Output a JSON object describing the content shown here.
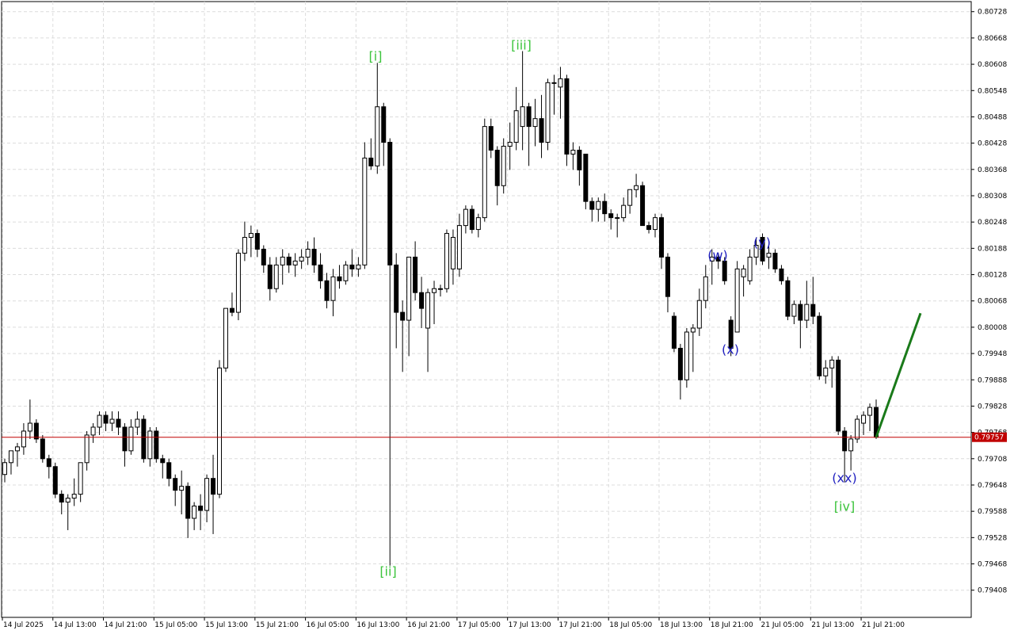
{
  "chart_data": {
    "type": "candlestick",
    "grid": true,
    "ylim": [
      0.79346,
      0.80751
    ],
    "yticks": [
      0.79408,
      0.79468,
      0.79528,
      0.79588,
      0.79648,
      0.79708,
      0.79768,
      0.79828,
      0.79888,
      0.79948,
      0.80008,
      0.80068,
      0.80128,
      0.80188,
      0.80248,
      0.80308,
      0.80368,
      0.80428,
      0.80488,
      0.80548,
      0.80608,
      0.80668,
      0.80728
    ],
    "categories": [
      "14 Jul 2025",
      null,
      null,
      null,
      null,
      null,
      null,
      null,
      "14 Jul 13:00",
      null,
      null,
      null,
      null,
      null,
      null,
      null,
      "14 Jul 21:00",
      null,
      null,
      null,
      null,
      null,
      null,
      null,
      "15 Jul 05:00",
      null,
      null,
      null,
      null,
      null,
      null,
      null,
      "15 Jul 13:00",
      null,
      null,
      null,
      null,
      null,
      null,
      null,
      "15 Jul 21:00",
      null,
      null,
      null,
      null,
      null,
      null,
      null,
      "16 Jul 05:00",
      null,
      null,
      null,
      null,
      null,
      null,
      null,
      "16 Jul 13:00",
      null,
      null,
      null,
      null,
      null,
      null,
      null,
      "16 Jul 21:00",
      null,
      null,
      null,
      null,
      null,
      null,
      null,
      "17 Jul 05:00",
      null,
      null,
      null,
      null,
      null,
      null,
      null,
      "17 Jul 13:00",
      null,
      null,
      null,
      null,
      null,
      null,
      null,
      "17 Jul 21:00",
      null,
      null,
      null,
      null,
      null,
      null,
      null,
      "18 Jul 05:00",
      null,
      null,
      null,
      null,
      null,
      null,
      null,
      "18 Jul 13:00",
      null,
      null,
      null,
      null,
      null,
      null,
      null,
      "18 Jul 21:00",
      null,
      null,
      null,
      null,
      null,
      null,
      null,
      "21 Jul 05:00",
      null,
      null,
      null,
      null,
      null,
      null,
      null,
      "21 Jul 13:00",
      null,
      null,
      null,
      null,
      null,
      null,
      null,
      "21 Jul 21:00",
      null,
      null
    ],
    "up_color": "#ffffff",
    "down_color": "#000000",
    "candles": [
      [
        0.79672,
        0.79708,
        0.79654,
        0.79699
      ],
      [
        0.79699,
        0.79726,
        0.79672,
        0.79726
      ],
      [
        0.79726,
        0.79744,
        0.7969,
        0.79735
      ],
      [
        0.79735,
        0.79789,
        0.79717,
        0.79771
      ],
      [
        0.79771,
        0.79843,
        0.79753,
        0.79789
      ],
      [
        0.79789,
        0.79798,
        0.79744,
        0.79753
      ],
      [
        0.79753,
        0.79762,
        0.79699,
        0.79708
      ],
      [
        0.79708,
        0.79717,
        0.79663,
        0.7969
      ],
      [
        0.7969,
        0.79699,
        0.79618,
        0.79627
      ],
      [
        0.79627,
        0.79636,
        0.79581,
        0.79609
      ],
      [
        0.79609,
        0.79627,
        0.79545,
        0.79618
      ],
      [
        0.79618,
        0.79663,
        0.796,
        0.79627
      ],
      [
        0.79627,
        0.79699,
        0.79609,
        0.79699
      ],
      [
        0.79699,
        0.79771,
        0.79681,
        0.79762
      ],
      [
        0.79762,
        0.79789,
        0.79744,
        0.7978
      ],
      [
        0.7978,
        0.79816,
        0.79762,
        0.79807
      ],
      [
        0.79807,
        0.79816,
        0.79771,
        0.79789
      ],
      [
        0.79789,
        0.79816,
        0.79771,
        0.79798
      ],
      [
        0.79798,
        0.79816,
        0.79762,
        0.7978
      ],
      [
        0.7978,
        0.79789,
        0.7969,
        0.79726
      ],
      [
        0.79726,
        0.79798,
        0.79717,
        0.7978
      ],
      [
        0.7978,
        0.79816,
        0.79762,
        0.79798
      ],
      [
        0.79798,
        0.79807,
        0.79699,
        0.79708
      ],
      [
        0.79708,
        0.7978,
        0.7969,
        0.79771
      ],
      [
        0.79771,
        0.7978,
        0.79699,
        0.79708
      ],
      [
        0.79708,
        0.79717,
        0.79663,
        0.79699
      ],
      [
        0.79699,
        0.79708,
        0.79645,
        0.79663
      ],
      [
        0.79663,
        0.79672,
        0.796,
        0.79636
      ],
      [
        0.79636,
        0.79681,
        0.79581,
        0.79645
      ],
      [
        0.79645,
        0.79654,
        0.79527,
        0.79572
      ],
      [
        0.79572,
        0.79609,
        0.79545,
        0.796
      ],
      [
        0.796,
        0.79627,
        0.79545,
        0.7959
      ],
      [
        0.7959,
        0.79672,
        0.79563,
        0.79663
      ],
      [
        0.79663,
        0.79717,
        0.79536,
        0.79627
      ],
      [
        0.79627,
        0.79933,
        0.79618,
        0.79915
      ],
      [
        0.79915,
        0.80051,
        0.79906,
        0.80051
      ],
      [
        0.80051,
        0.80087,
        0.80033,
        0.80042
      ],
      [
        0.80042,
        0.80186,
        0.80024,
        0.80177
      ],
      [
        0.80177,
        0.80249,
        0.80159,
        0.80213
      ],
      [
        0.80213,
        0.8024,
        0.80168,
        0.80222
      ],
      [
        0.80222,
        0.80231,
        0.80168,
        0.80186
      ],
      [
        0.80186,
        0.80195,
        0.80132,
        0.8015
      ],
      [
        0.8015,
        0.80168,
        0.80069,
        0.80096
      ],
      [
        0.80096,
        0.80168,
        0.80087,
        0.8015
      ],
      [
        0.8015,
        0.80186,
        0.80105,
        0.80168
      ],
      [
        0.80168,
        0.80177,
        0.80132,
        0.8015
      ],
      [
        0.8015,
        0.80177,
        0.80123,
        0.80159
      ],
      [
        0.80159,
        0.80186,
        0.80141,
        0.80168
      ],
      [
        0.80168,
        0.80204,
        0.8015,
        0.80186
      ],
      [
        0.80186,
        0.80213,
        0.80132,
        0.8015
      ],
      [
        0.8015,
        0.80177,
        0.80096,
        0.80114
      ],
      [
        0.80114,
        0.80132,
        0.80051,
        0.80069
      ],
      [
        0.80069,
        0.80141,
        0.80033,
        0.80123
      ],
      [
        0.80123,
        0.8015,
        0.80096,
        0.80114
      ],
      [
        0.80114,
        0.80159,
        0.80105,
        0.8015
      ],
      [
        0.8015,
        0.80186,
        0.80123,
        0.80141
      ],
      [
        0.80141,
        0.80168,
        0.80123,
        0.8015
      ],
      [
        0.8015,
        0.8043,
        0.80141,
        0.80394
      ],
      [
        0.80394,
        0.80439,
        0.80367,
        0.80376
      ],
      [
        0.80376,
        0.80611,
        0.80358,
        0.80511
      ],
      [
        0.80511,
        0.8052,
        0.80376,
        0.8043
      ],
      [
        0.8043,
        0.80439,
        0.79464,
        0.8015
      ],
      [
        0.8015,
        0.80177,
        0.7996,
        0.80042
      ],
      [
        0.80042,
        0.80069,
        0.79906,
        0.80024
      ],
      [
        0.80024,
        0.80168,
        0.79942,
        0.80168
      ],
      [
        0.80168,
        0.80204,
        0.80069,
        0.80087
      ],
      [
        0.80087,
        0.80123,
        0.80006,
        0.80051
      ],
      [
        0.80006,
        0.80096,
        0.79906,
        0.80087
      ],
      [
        0.80087,
        0.80114,
        0.80015,
        0.80096
      ],
      [
        0.80096,
        0.80105,
        0.80078,
        0.80096
      ],
      [
        0.80096,
        0.80231,
        0.80087,
        0.80222
      ],
      [
        0.80141,
        0.80231,
        0.80105,
        0.80213
      ],
      [
        0.80141,
        0.80267,
        0.80123,
        0.8024
      ],
      [
        0.8024,
        0.80286,
        0.80222,
        0.80277
      ],
      [
        0.80277,
        0.80286,
        0.80222,
        0.80231
      ],
      [
        0.80231,
        0.80267,
        0.80213,
        0.80258
      ],
      [
        0.80258,
        0.80484,
        0.80249,
        0.80466
      ],
      [
        0.80466,
        0.80484,
        0.80394,
        0.80412
      ],
      [
        0.80412,
        0.80421,
        0.80286,
        0.80331
      ],
      [
        0.80331,
        0.80439,
        0.80313,
        0.80421
      ],
      [
        0.80421,
        0.80475,
        0.80367,
        0.8043
      ],
      [
        0.8043,
        0.80556,
        0.80412,
        0.80502
      ],
      [
        0.80466,
        0.80638,
        0.80412,
        0.80511
      ],
      [
        0.80511,
        0.8052,
        0.80376,
        0.80466
      ],
      [
        0.80466,
        0.80529,
        0.80421,
        0.80484
      ],
      [
        0.80484,
        0.80538,
        0.80394,
        0.8043
      ],
      [
        0.8043,
        0.80575,
        0.80412,
        0.80566
      ],
      [
        0.80566,
        0.80584,
        0.80493,
        0.80566
      ],
      [
        0.80556,
        0.80602,
        0.80484,
        0.80575
      ],
      [
        0.80575,
        0.80584,
        0.80376,
        0.80403
      ],
      [
        0.80403,
        0.8043,
        0.80367,
        0.80412
      ],
      [
        0.80412,
        0.80421,
        0.80331,
        0.80367
      ],
      [
        0.80403,
        0.80403,
        0.80277,
        0.80295
      ],
      [
        0.80295,
        0.80304,
        0.80249,
        0.80277
      ],
      [
        0.80277,
        0.80304,
        0.80249,
        0.80295
      ],
      [
        0.80295,
        0.80313,
        0.80249,
        0.80267
      ],
      [
        0.80267,
        0.80277,
        0.80231,
        0.80258
      ],
      [
        0.80258,
        0.80267,
        0.80213,
        0.80258
      ],
      [
        0.80258,
        0.80304,
        0.80249,
        0.80286
      ],
      [
        0.80286,
        0.80322,
        0.80267,
        0.80322
      ],
      [
        0.80322,
        0.80358,
        0.80304,
        0.80331
      ],
      [
        0.80331,
        0.8034,
        0.8024,
        0.8024
      ],
      [
        0.8024,
        0.80249,
        0.80222,
        0.80231
      ],
      [
        0.80231,
        0.80267,
        0.80213,
        0.80258
      ],
      [
        0.80258,
        0.80267,
        0.80141,
        0.80168
      ],
      [
        0.80168,
        0.80177,
        0.80042,
        0.80078
      ],
      [
        0.80033,
        0.80042,
        0.79951,
        0.7996
      ],
      [
        0.7996,
        0.7997,
        0.79843,
        0.79888
      ],
      [
        0.79888,
        0.80006,
        0.7987,
        0.79997
      ],
      [
        0.79997,
        0.80015,
        0.79906,
        0.80006
      ],
      [
        0.80006,
        0.80096,
        0.79988,
        0.80069
      ],
      [
        0.80069,
        0.8015,
        0.80051,
        0.80123
      ],
      [
        0.80159,
        0.80186,
        0.80105,
        0.80168
      ],
      [
        0.80168,
        0.80177,
        0.80141,
        0.80159
      ],
      [
        0.80159,
        0.80168,
        0.80105,
        0.80114
      ],
      [
        0.80024,
        0.80033,
        0.79942,
        0.7996
      ],
      [
        0.79997,
        0.80159,
        0.79997,
        0.80141
      ],
      [
        0.80123,
        0.8015,
        0.80078,
        0.80141
      ],
      [
        0.80114,
        0.80186,
        0.80105,
        0.80168
      ],
      [
        0.80168,
        0.80213,
        0.8015,
        0.80195
      ],
      [
        0.80213,
        0.80222,
        0.8015,
        0.80159
      ],
      [
        0.80168,
        0.80195,
        0.80141,
        0.80177
      ],
      [
        0.80177,
        0.80186,
        0.80132,
        0.80141
      ],
      [
        0.80141,
        0.8015,
        0.80105,
        0.80114
      ],
      [
        0.80114,
        0.80123,
        0.80024,
        0.80033
      ],
      [
        0.80033,
        0.80069,
        0.80015,
        0.8006
      ],
      [
        0.8006,
        0.80069,
        0.7996,
        0.80024
      ],
      [
        0.80024,
        0.80114,
        0.80006,
        0.8006
      ],
      [
        0.8006,
        0.80123,
        0.80015,
        0.80033
      ],
      [
        0.80033,
        0.80042,
        0.79888,
        0.79897
      ],
      [
        0.79897,
        0.79933,
        0.79879,
        0.79915
      ],
      [
        0.79915,
        0.79942,
        0.7987,
        0.79933
      ],
      [
        0.79933,
        0.79942,
        0.79762,
        0.79771
      ],
      [
        0.79771,
        0.7978,
        0.79654,
        0.79726
      ],
      [
        0.79726,
        0.79762,
        0.79681,
        0.79753
      ],
      [
        0.79753,
        0.79807,
        0.79744,
        0.79798
      ],
      [
        0.79789,
        0.79816,
        0.79762,
        0.79807
      ],
      [
        0.79807,
        0.79834,
        0.79771,
        0.79825
      ],
      [
        0.79825,
        0.79843,
        0.79753,
        0.79757
      ]
    ],
    "last_price": 0.79757,
    "last_price_color": "#c00000",
    "projection": {
      "color": "#1a7a1a",
      "values": [
        0.79757,
        0.8004
      ]
    },
    "annotations": [
      {
        "text": "[i]",
        "color": "#3cc43c"
      },
      {
        "text": "[ii]",
        "color": "#3cc43c"
      },
      {
        "text": "[iii]",
        "color": "#3cc43c"
      },
      {
        "text": "[iv]",
        "color": "#3cc43c"
      },
      {
        "text": "(w)",
        "color": "#2020c0"
      },
      {
        "text": "(x)",
        "color": "#2020c0"
      },
      {
        "text": "(y)",
        "color": "#2020c0"
      },
      {
        "text": "(xx)",
        "color": "#2020c0"
      }
    ]
  }
}
